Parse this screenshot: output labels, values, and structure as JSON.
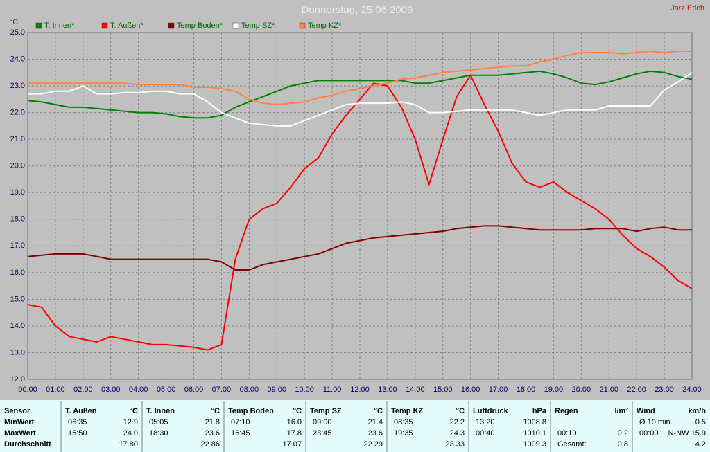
{
  "chart_data": {
    "type": "line",
    "title": "Donnerstag, 25.06.2009",
    "author": "Jarz Erich",
    "y_unit": "°C",
    "x": [
      0,
      0.5,
      1,
      1.5,
      2,
      2.5,
      3,
      3.5,
      4,
      4.5,
      5,
      5.5,
      6,
      6.5,
      7,
      7.5,
      8,
      8.5,
      9,
      9.5,
      10,
      10.5,
      11,
      11.5,
      12,
      12.5,
      13,
      13.5,
      14,
      14.5,
      15,
      15.5,
      16,
      16.5,
      17,
      17.5,
      18,
      18.5,
      19,
      19.5,
      20,
      20.5,
      21,
      21.5,
      22,
      22.5,
      23,
      23.5,
      24
    ],
    "xlim": [
      0,
      24
    ],
    "xticks": [
      {
        "value": 0,
        "label": "00:00"
      },
      {
        "value": 1,
        "label": "01:00"
      },
      {
        "value": 2,
        "label": "02:00"
      },
      {
        "value": 3,
        "label": "03:00"
      },
      {
        "value": 4,
        "label": "04:00"
      },
      {
        "value": 5,
        "label": "05:00"
      },
      {
        "value": 6,
        "label": "06:00"
      },
      {
        "value": 7,
        "label": "07:00"
      },
      {
        "value": 8,
        "label": "08:00"
      },
      {
        "value": 9,
        "label": "09:00"
      },
      {
        "value": 10,
        "label": "10:00"
      },
      {
        "value": 11,
        "label": "11:00"
      },
      {
        "value": 12,
        "label": "12:00"
      },
      {
        "value": 13,
        "label": "13:00"
      },
      {
        "value": 14,
        "label": "14:00"
      },
      {
        "value": 15,
        "label": "15:00"
      },
      {
        "value": 16,
        "label": "16:00"
      },
      {
        "value": 17,
        "label": "17:00"
      },
      {
        "value": 18,
        "label": "18:00"
      },
      {
        "value": 19,
        "label": "19:00"
      },
      {
        "value": 20,
        "label": "20:00"
      },
      {
        "value": 21,
        "label": "21:00"
      },
      {
        "value": 22,
        "label": "22:00"
      },
      {
        "value": 23,
        "label": "23:00"
      },
      {
        "value": 24,
        "label": "24:00"
      }
    ],
    "ylim": [
      12,
      25
    ],
    "yticks": [
      {
        "value": 12,
        "label": "12.0"
      },
      {
        "value": 13,
        "label": "13.0"
      },
      {
        "value": 14,
        "label": "14.0"
      },
      {
        "value": 15,
        "label": "15.0"
      },
      {
        "value": 16,
        "label": "16.0"
      },
      {
        "value": 17,
        "label": "17.0"
      },
      {
        "value": 18,
        "label": "18.0"
      },
      {
        "value": 19,
        "label": "19.0"
      },
      {
        "value": 20,
        "label": "20.0"
      },
      {
        "value": 21,
        "label": "21.0"
      },
      {
        "value": 22,
        "label": "22.0"
      },
      {
        "value": 23,
        "label": "23.0"
      },
      {
        "value": 24,
        "label": "24.0"
      },
      {
        "value": 25,
        "label": "25.0"
      }
    ],
    "grid": true,
    "series": [
      {
        "name": "T. Innen*",
        "color": "#008000",
        "values": [
          22.45,
          22.4,
          22.3,
          22.2,
          22.2,
          22.15,
          22.1,
          22.05,
          22.0,
          22.0,
          21.95,
          21.85,
          21.8,
          21.8,
          21.9,
          22.2,
          22.4,
          22.6,
          22.8,
          23.0,
          23.1,
          23.2,
          23.2,
          23.2,
          23.2,
          23.2,
          23.2,
          23.2,
          23.1,
          23.1,
          23.2,
          23.3,
          23.4,
          23.4,
          23.4,
          23.45,
          23.5,
          23.55,
          23.45,
          23.3,
          23.1,
          23.05,
          23.15,
          23.3,
          23.45,
          23.55,
          23.5,
          23.35,
          23.25
        ]
      },
      {
        "name": "T. Außen*",
        "color": "#ff0000",
        "values": [
          14.8,
          14.7,
          14.0,
          13.6,
          13.5,
          13.4,
          13.6,
          13.5,
          13.4,
          13.3,
          13.3,
          13.25,
          13.2,
          13.1,
          13.3,
          16.5,
          18.0,
          18.4,
          18.6,
          19.2,
          19.9,
          20.3,
          21.2,
          21.9,
          22.5,
          23.1,
          23.0,
          22.2,
          21.0,
          19.3,
          21.0,
          22.6,
          23.4,
          22.3,
          21.3,
          20.1,
          19.4,
          19.2,
          19.4,
          19.0,
          18.7,
          18.4,
          18.0,
          17.4,
          16.9,
          16.6,
          16.2,
          15.7,
          15.4
        ]
      },
      {
        "name": "Temp Boden*",
        "color": "#800000",
        "values": [
          16.6,
          16.65,
          16.7,
          16.7,
          16.7,
          16.6,
          16.5,
          16.5,
          16.5,
          16.5,
          16.5,
          16.5,
          16.5,
          16.5,
          16.4,
          16.1,
          16.1,
          16.3,
          16.4,
          16.5,
          16.6,
          16.7,
          16.9,
          17.1,
          17.2,
          17.3,
          17.35,
          17.4,
          17.45,
          17.5,
          17.55,
          17.65,
          17.7,
          17.75,
          17.75,
          17.7,
          17.65,
          17.6,
          17.6,
          17.6,
          17.6,
          17.65,
          17.65,
          17.65,
          17.55,
          17.65,
          17.7,
          17.6,
          17.6
        ]
      },
      {
        "name": "Temp SZ*",
        "color": "#ffffff",
        "values": [
          22.7,
          22.7,
          22.8,
          22.8,
          23.0,
          22.7,
          22.7,
          22.75,
          22.75,
          22.8,
          22.8,
          22.7,
          22.7,
          22.4,
          22.0,
          21.8,
          21.6,
          21.55,
          21.5,
          21.5,
          21.7,
          21.9,
          22.1,
          22.3,
          22.35,
          22.35,
          22.35,
          22.4,
          22.3,
          22.0,
          22.0,
          22.05,
          22.1,
          22.1,
          22.1,
          22.1,
          22.0,
          21.9,
          22.0,
          22.1,
          22.1,
          22.1,
          22.25,
          22.25,
          22.25,
          22.25,
          22.85,
          23.15,
          23.5
        ]
      },
      {
        "name": "Temp KZ*",
        "color": "#ff8040",
        "values": [
          23.1,
          23.1,
          23.1,
          23.1,
          23.1,
          23.1,
          23.1,
          23.1,
          23.05,
          23.05,
          23.05,
          23.05,
          22.95,
          22.95,
          22.9,
          22.8,
          22.5,
          22.35,
          22.3,
          22.35,
          22.4,
          22.55,
          22.65,
          22.8,
          22.9,
          23.0,
          23.1,
          23.25,
          23.3,
          23.4,
          23.5,
          23.55,
          23.6,
          23.65,
          23.7,
          23.75,
          23.75,
          23.9,
          24.0,
          24.15,
          24.25,
          24.25,
          24.25,
          24.2,
          24.25,
          24.3,
          24.25,
          24.3,
          24.3
        ]
      }
    ]
  },
  "table": {
    "header": [
      {
        "name": "Sensor"
      },
      {
        "name": "T. Außen",
        "unit": "°C"
      },
      {
        "name": "T. Innen",
        "unit": "°C"
      },
      {
        "name": "Temp Boden",
        "unit": "°C"
      },
      {
        "name": "Temp SZ",
        "unit": "°C"
      },
      {
        "name": "Temp KZ",
        "unit": "°C"
      },
      {
        "name": "Luftdruck",
        "unit": "hPa"
      },
      {
        "name": "Regen",
        "unit": "l/m²"
      },
      {
        "name": "Wind",
        "unit": "km/h"
      }
    ],
    "rows": [
      {
        "label": "MinWert",
        "cells": [
          {
            "time": "06:35",
            "value": "12.9"
          },
          {
            "time": "05:05",
            "value": "21.8"
          },
          {
            "time": "07:10",
            "value": "16.0"
          },
          {
            "time": "09:00",
            "value": "21.4"
          },
          {
            "time": "08:35",
            "value": "22.2"
          },
          {
            "time": "13:20",
            "value": "1008.8"
          },
          null,
          {
            "time": "Ø 10 min.",
            "value": "0.5"
          }
        ]
      },
      {
        "label": "MaxWert",
        "cells": [
          {
            "time": "15:50",
            "value": "24.0"
          },
          {
            "time": "18:30",
            "value": "23.6"
          },
          {
            "time": "16:45",
            "value": "17.8"
          },
          {
            "time": "23:45",
            "value": "23.6"
          },
          {
            "time": "19:35",
            "value": "24.3"
          },
          {
            "time": "00:40",
            "value": "1010.1"
          },
          {
            "time": "00:10",
            "value": "0.2"
          },
          {
            "time": "00:00",
            "value": "N-NW 15.9"
          }
        ]
      },
      {
        "label": "Durchschnitt",
        "cells": [
          {
            "value": "17.80"
          },
          {
            "value": "22.86"
          },
          {
            "value": "17.07"
          },
          {
            "value": "22.29"
          },
          {
            "value": "23.33"
          },
          {
            "value": "1009.3"
          },
          {
            "time": "Gesamt:",
            "value": "0.8"
          },
          {
            "value": "4.2"
          }
        ]
      }
    ]
  }
}
